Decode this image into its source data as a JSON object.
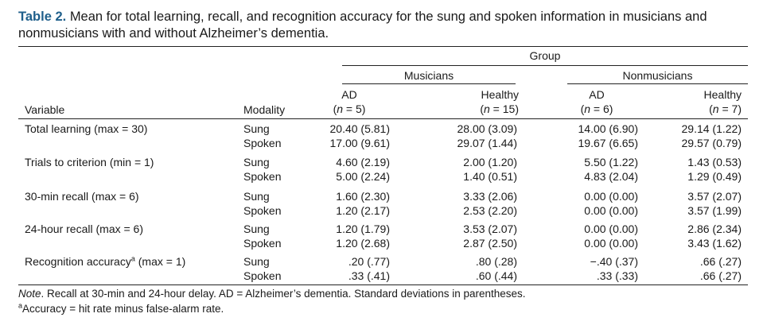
{
  "caption": {
    "label": "Table 2.",
    "text": "Mean for total learning, recall, and recognition accuracy for the sung and spoken information in musicians and nonmusicians with and without Alzheimer’s dementia."
  },
  "header": {
    "group": "Group",
    "musicians": "Musicians",
    "nonmusicians": "Nonmusicians",
    "variable": "Variable",
    "modality": "Modality",
    "cols": [
      {
        "label": "AD",
        "n_prefix": "(",
        "n_var": "n",
        "n_rest": " = 5)"
      },
      {
        "label": "Healthy",
        "n_prefix": "(",
        "n_var": "n",
        "n_rest": " = 15)"
      },
      {
        "label": "AD",
        "n_prefix": "(",
        "n_var": "n",
        "n_rest": " = 6)"
      },
      {
        "label": "Healthy",
        "n_prefix": "(",
        "n_var": "n",
        "n_rest": " = 7)"
      }
    ]
  },
  "rows": [
    {
      "variable": "Total learning (max = 30)",
      "sup": "",
      "sung": {
        "modality": "Sung",
        "values": [
          "20.40 (5.81)",
          "28.00 (3.09)",
          "14.00 (6.90)",
          "29.14 (1.22)"
        ]
      },
      "spoken": {
        "modality": "Spoken",
        "values": [
          "17.00 (9.61)",
          "29.07 (1.44)",
          "19.67 (6.65)",
          "29.57 (0.79)"
        ]
      }
    },
    {
      "variable": "Trials to criterion (min = 1)",
      "sup": "",
      "sung": {
        "modality": "Sung",
        "values": [
          "4.60 (2.19)",
          "2.00 (1.20)",
          "5.50 (1.22)",
          "1.43 (0.53)"
        ]
      },
      "spoken": {
        "modality": "Spoken",
        "values": [
          "5.00 (2.24)",
          "1.40 (0.51)",
          "4.83 (2.04)",
          "1.29 (0.49)"
        ]
      }
    },
    {
      "variable": "30-min recall (max = 6)",
      "sup": "",
      "sung": {
        "modality": "Sung",
        "values": [
          "1.60 (2.30)",
          "3.33 (2.06)",
          "0.00 (0.00)",
          "3.57 (2.07)"
        ]
      },
      "spoken": {
        "modality": "Spoken",
        "values": [
          "1.20 (2.17)",
          "2.53 (2.20)",
          "0.00 (0.00)",
          "3.57 (1.99)"
        ]
      }
    },
    {
      "variable": "24-hour recall (max = 6)",
      "sup": "",
      "sung": {
        "modality": "Sung",
        "values": [
          "1.20 (1.79)",
          "3.53 (2.07)",
          "0.00 (0.00)",
          "2.86 (2.34)"
        ]
      },
      "spoken": {
        "modality": "Spoken",
        "values": [
          "1.20 (2.68)",
          "2.87 (2.50)",
          "0.00 (0.00)",
          "3.43 (1.62)"
        ]
      }
    },
    {
      "variable": "Recognition accuracy",
      "sup": "a",
      "variable_suffix": " (max = 1)",
      "sung": {
        "modality": "Sung",
        "values": [
          ".20 (.77)",
          ".80 (.28)",
          "−.40 (.37)",
          ".66 (.27)"
        ]
      },
      "spoken": {
        "modality": "Spoken",
        "values": [
          ".33 (.41)",
          ".60 (.44)",
          ".33 (.33)",
          ".66 (.27)"
        ]
      }
    }
  ],
  "notes": {
    "note_label": "Note",
    "note_text": ". Recall at 30-min and 24-hour delay. AD = Alzheimer’s dementia. Standard deviations in parentheses.",
    "footnote_sup": "a",
    "footnote_text": "Accuracy = hit rate minus false-alarm rate."
  }
}
